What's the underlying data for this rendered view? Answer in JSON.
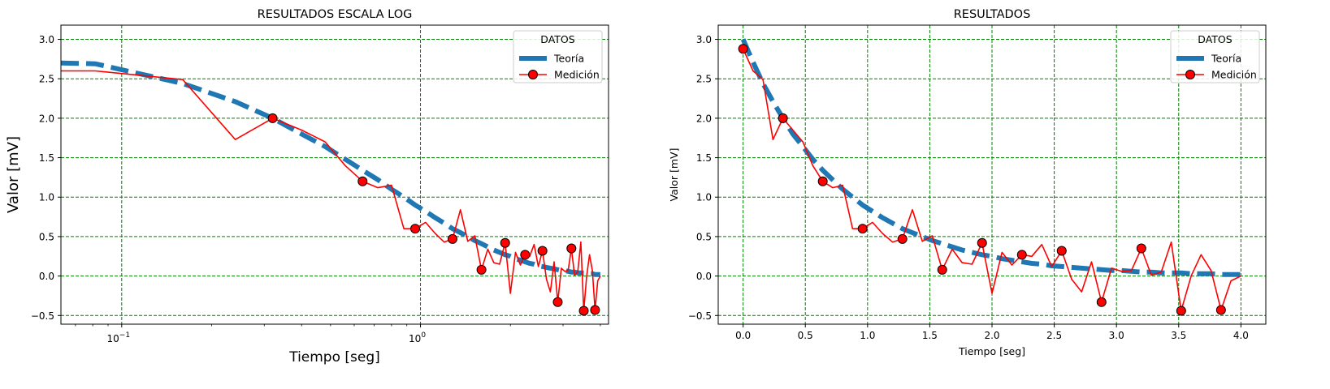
{
  "chart_data": [
    {
      "type": "line",
      "title": "RESULTADOS ESCALA LOG",
      "xlabel": "Tiempo [seg]",
      "ylabel": "Valor [mV]",
      "xscale": "log",
      "xlim": [
        0.0626,
        4.26
      ],
      "ylim": [
        -0.61,
        3.18
      ],
      "xticks": [
        {
          "value": 0.1,
          "base": "10",
          "exp": "−1"
        },
        {
          "value": 1.0,
          "base": "10",
          "exp": "0"
        }
      ],
      "yticks": [
        -0.5,
        0.0,
        0.5,
        1.0,
        1.5,
        2.0,
        2.5,
        3.0
      ],
      "grid": true,
      "legend": {
        "title": "DATOS",
        "position": "upper right"
      },
      "series": [
        {
          "name": "Teoría",
          "style": "dashed",
          "color": "#1f77b4",
          "x": [
            0.0626,
            0.0816,
            0.16,
            0.24,
            0.32,
            0.4,
            0.48,
            0.56,
            0.64,
            0.72,
            0.8,
            0.88,
            0.96,
            1.04,
            1.12,
            1.2,
            1.28,
            1.36,
            1.44,
            1.52,
            1.6,
            1.68,
            1.76,
            1.84,
            1.92,
            2.0,
            2.08,
            2.16,
            2.24,
            2.32,
            2.4,
            2.48,
            2.56,
            2.64,
            2.72,
            2.8,
            2.88,
            2.96,
            3.04,
            3.12,
            3.2,
            3.28,
            3.36,
            3.44,
            3.52,
            3.6,
            3.68,
            3.76,
            3.84,
            3.92,
            4.0
          ],
          "y": [
            2.7,
            2.69,
            2.44,
            2.21,
            2.0,
            1.8,
            1.64,
            1.48,
            1.34,
            1.22,
            1.1,
            1.0,
            0.9,
            0.82,
            0.74,
            0.67,
            0.6,
            0.55,
            0.5,
            0.45,
            0.41,
            0.37,
            0.33,
            0.3,
            0.27,
            0.25,
            0.22,
            0.2,
            0.18,
            0.16,
            0.15,
            0.13,
            0.12,
            0.11,
            0.1,
            0.09,
            0.08,
            0.07,
            0.07,
            0.06,
            0.05,
            0.05,
            0.04,
            0.04,
            0.04,
            0.03,
            0.03,
            0.03,
            0.02,
            0.02,
            0.02
          ]
        },
        {
          "name": "Medición",
          "style": "solid",
          "color": "#ff0000",
          "x": [
            0.0626,
            0.0816,
            0.16,
            0.24,
            0.32,
            0.4,
            0.48,
            0.56,
            0.64,
            0.72,
            0.8,
            0.88,
            0.96,
            1.04,
            1.12,
            1.2,
            1.28,
            1.36,
            1.44,
            1.52,
            1.6,
            1.68,
            1.76,
            1.84,
            1.92,
            2.0,
            2.08,
            2.16,
            2.24,
            2.32,
            2.4,
            2.48,
            2.56,
            2.64,
            2.72,
            2.8,
            2.88,
            2.96,
            3.04,
            3.12,
            3.2,
            3.28,
            3.36,
            3.44,
            3.52,
            3.6,
            3.68,
            3.76,
            3.84,
            3.92,
            4.0
          ],
          "y": [
            2.6,
            2.6,
            2.49,
            1.73,
            2.0,
            1.85,
            1.7,
            1.4,
            1.2,
            1.12,
            1.15,
            0.6,
            0.6,
            0.68,
            0.54,
            0.43,
            0.47,
            0.84,
            0.44,
            0.51,
            0.08,
            0.34,
            0.17,
            0.15,
            0.42,
            -0.22,
            0.3,
            0.14,
            0.27,
            0.25,
            0.4,
            0.12,
            0.32,
            -0.04,
            -0.2,
            0.18,
            -0.33,
            0.1,
            0.06,
            0.07,
            0.35,
            0.01,
            0.05,
            0.43,
            -0.44,
            0.0,
            0.27,
            0.07,
            -0.43,
            -0.06,
            0.0
          ],
          "markers_x": [
            0.32,
            0.64,
            0.96,
            1.28,
            1.6,
            1.92,
            2.24,
            2.56,
            2.88,
            3.2,
            3.52,
            3.84
          ],
          "markers_y": [
            2.0,
            1.2,
            0.6,
            0.47,
            0.08,
            0.42,
            0.27,
            0.32,
            -0.33,
            0.35,
            -0.44,
            -0.43
          ]
        }
      ]
    },
    {
      "type": "line",
      "title": "RESULTADOS",
      "xlabel": "Tiempo [seg]",
      "ylabel": "Valor [mV]",
      "xscale": "linear",
      "xlim": [
        -0.2,
        4.2
      ],
      "ylim": [
        -0.61,
        3.18
      ],
      "xticks": [
        0.0,
        0.5,
        1.0,
        1.5,
        2.0,
        2.5,
        3.0,
        3.5,
        4.0
      ],
      "yticks": [
        -0.5,
        0.0,
        0.5,
        1.0,
        1.5,
        2.0,
        2.5,
        3.0
      ],
      "grid": true,
      "legend": {
        "title": "DATOS",
        "position": "upper right"
      },
      "series": [
        {
          "name": "Teoría",
          "style": "dashed",
          "color": "#1f77b4",
          "x": [
            0.0,
            0.08,
            0.16,
            0.24,
            0.32,
            0.4,
            0.48,
            0.56,
            0.64,
            0.72,
            0.8,
            0.88,
            0.96,
            1.04,
            1.12,
            1.2,
            1.28,
            1.36,
            1.44,
            1.52,
            1.6,
            1.68,
            1.76,
            1.84,
            1.92,
            2.0,
            2.08,
            2.16,
            2.24,
            2.32,
            2.4,
            2.48,
            2.56,
            2.64,
            2.72,
            2.8,
            2.88,
            2.96,
            3.04,
            3.12,
            3.2,
            3.28,
            3.36,
            3.44,
            3.52,
            3.6,
            3.68,
            3.76,
            3.84,
            3.92,
            4.0
          ],
          "y": [
            3.0,
            2.71,
            2.44,
            2.21,
            2.0,
            1.8,
            1.64,
            1.48,
            1.34,
            1.22,
            1.1,
            1.0,
            0.9,
            0.82,
            0.74,
            0.67,
            0.6,
            0.55,
            0.5,
            0.45,
            0.41,
            0.37,
            0.33,
            0.3,
            0.27,
            0.25,
            0.22,
            0.2,
            0.18,
            0.16,
            0.15,
            0.13,
            0.12,
            0.11,
            0.1,
            0.09,
            0.08,
            0.07,
            0.07,
            0.06,
            0.05,
            0.05,
            0.04,
            0.04,
            0.04,
            0.03,
            0.03,
            0.03,
            0.02,
            0.02,
            0.02
          ]
        },
        {
          "name": "Medición",
          "style": "solid",
          "color": "#ff0000",
          "x": [
            0.0,
            0.08,
            0.16,
            0.24,
            0.32,
            0.4,
            0.48,
            0.56,
            0.64,
            0.72,
            0.8,
            0.88,
            0.96,
            1.04,
            1.12,
            1.2,
            1.28,
            1.36,
            1.44,
            1.52,
            1.6,
            1.68,
            1.76,
            1.84,
            1.92,
            2.0,
            2.08,
            2.16,
            2.24,
            2.32,
            2.4,
            2.48,
            2.56,
            2.64,
            2.72,
            2.8,
            2.88,
            2.96,
            3.04,
            3.12,
            3.2,
            3.28,
            3.36,
            3.44,
            3.52,
            3.6,
            3.68,
            3.76,
            3.84,
            3.92,
            4.0
          ],
          "y": [
            2.88,
            2.6,
            2.49,
            1.73,
            2.0,
            1.85,
            1.7,
            1.4,
            1.2,
            1.12,
            1.15,
            0.6,
            0.6,
            0.68,
            0.54,
            0.43,
            0.47,
            0.84,
            0.44,
            0.51,
            0.08,
            0.34,
            0.17,
            0.15,
            0.42,
            -0.22,
            0.3,
            0.14,
            0.27,
            0.25,
            0.4,
            0.12,
            0.32,
            -0.04,
            -0.2,
            0.18,
            -0.33,
            0.1,
            0.06,
            0.07,
            0.35,
            0.01,
            0.05,
            0.43,
            -0.44,
            0.0,
            0.27,
            0.07,
            -0.43,
            -0.06,
            0.0
          ],
          "markers_x": [
            0.0,
            0.32,
            0.64,
            0.96,
            1.28,
            1.6,
            1.92,
            2.24,
            2.56,
            2.88,
            3.2,
            3.52,
            3.84
          ],
          "markers_y": [
            2.88,
            2.0,
            1.2,
            0.6,
            0.47,
            0.08,
            0.42,
            0.27,
            0.32,
            -0.33,
            0.35,
            -0.44,
            -0.43
          ]
        }
      ]
    }
  ]
}
